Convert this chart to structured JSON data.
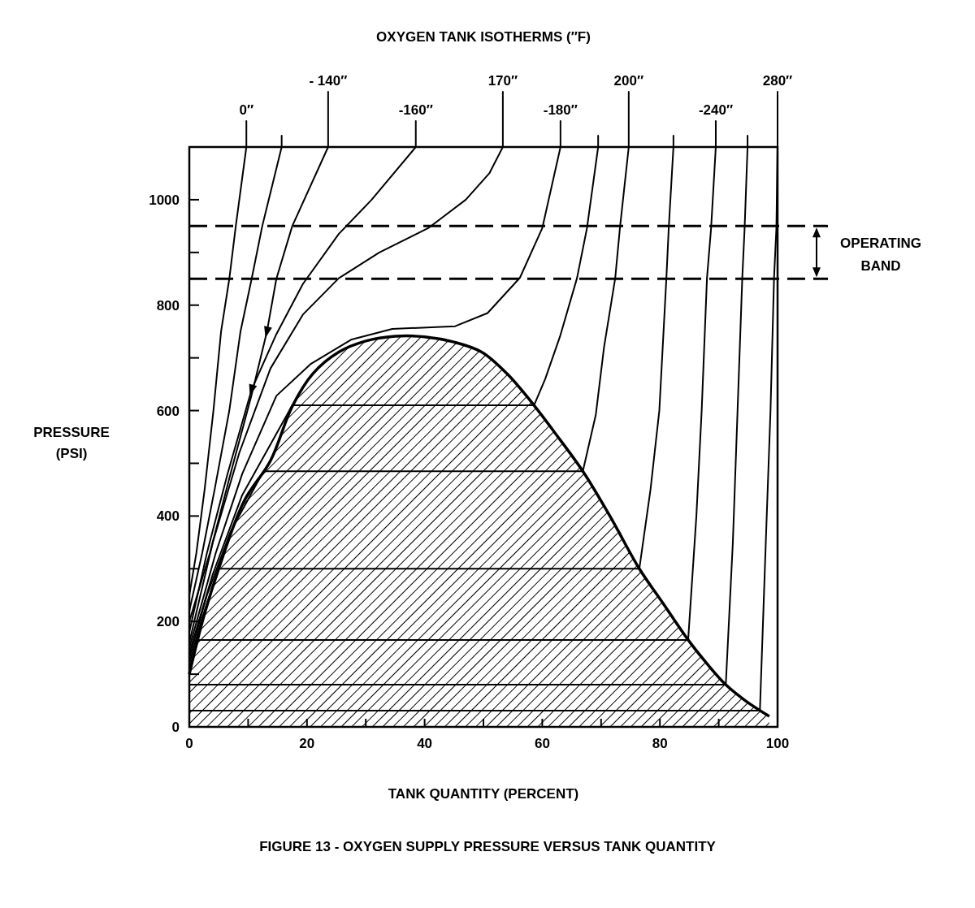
{
  "chart_data": {
    "type": "line",
    "title": "FIGURE 13 - OXYGEN SUPPLY PRESSURE VERSUS TANK QUANTITY",
    "xlabel": "TANK QUANTITY (PERCENT)",
    "ylabel": "PRESSURE (PSI)",
    "annotations": [
      "OXYGEN TANK ISOTHERMS (″F)",
      "OPERATING BAND"
    ],
    "xlim": [
      0,
      100
    ],
    "ylim": [
      0,
      1100
    ],
    "xticks": [
      0,
      {
        "value": 10,
        "label": null
      },
      20,
      {
        "value": 30,
        "label": null
      },
      40,
      {
        "value": 50,
        "label": null
      },
      60,
      {
        "value": 70,
        "label": null
      },
      80,
      {
        "value": 90,
        "label": null
      },
      100
    ],
    "yticks": [
      0,
      {
        "value": 100,
        "label": null
      },
      200,
      {
        "value": 300,
        "label": null
      },
      400,
      {
        "value": 500,
        "label": null
      },
      600,
      {
        "value": 700,
        "label": null
      },
      800,
      {
        "value": 900,
        "label": null
      },
      1000
    ],
    "grid": false,
    "marker": "none",
    "line_style": "solid",
    "ref_lines": [
      {
        "axis": "y",
        "value": 950,
        "color": "#000000",
        "line_style": "dashed"
      },
      {
        "axis": "y",
        "value": 850,
        "color": "#000000",
        "line_style": "dashed"
      }
    ],
    "series": [
      {
        "type": "area",
        "color": "#000000",
        "x": [
          0,
          2.3,
          5,
          9.3,
          13.8,
          17.5,
          21,
          25.4,
          30,
          35,
          40,
          45,
          49.7,
          54,
          58.6,
          62,
          66.9,
          71.5,
          76.5,
          80.5,
          84.8,
          88,
          91.2,
          94.5,
          98.6
        ],
        "values": [
          100,
          203,
          300,
          428,
          505,
          608,
          670,
          711,
          732,
          741,
          740,
          730,
          711,
          670,
          610,
          560,
          485,
          400,
          300,
          235,
          165,
          120,
          80,
          50,
          20
        ]
      },
      {
        "name": "0″",
        "color": "#000000",
        "x": [
          9.7,
          7.9,
          6.8,
          5.4,
          4.1,
          2.6,
          1.2,
          0
        ],
        "values": [
          1100,
          950,
          850,
          750,
          600,
          450,
          330,
          250
        ]
      },
      {
        "color": "#000000",
        "x": [
          15.7,
          12.4,
          10.6,
          8.7,
          6.8,
          4.3,
          2.2,
          0
        ],
        "values": [
          1100,
          950,
          850,
          750,
          600,
          450,
          330,
          220
        ]
      },
      {
        "name": "- 140″",
        "color": "#000000",
        "x": [
          23.6,
          17.5,
          14.8,
          13.2,
          10.6,
          7,
          3.5,
          0
        ],
        "values": [
          1100,
          950,
          850,
          750,
          630,
          480,
          330,
          200
        ]
      },
      {
        "name": "-160″",
        "color": "#000000",
        "x": [
          38.5,
          31,
          25.4,
          19.3,
          14.8,
          10.6,
          6.5,
          3,
          0
        ],
        "values": [
          1100,
          1000,
          935,
          840,
          745,
          640,
          480,
          330,
          180
        ]
      },
      {
        "name": "170″",
        "color": "#000000",
        "x": [
          53.3,
          51,
          47,
          40.6,
          32.3,
          25.4,
          19.3,
          13.8,
          8.5,
          4,
          0
        ],
        "values": [
          1100,
          1050,
          1000,
          946,
          900,
          851,
          782,
          680,
          520,
          350,
          160
        ]
      },
      {
        "name": "-180″",
        "color": "#000000",
        "x": [
          63.1,
          60,
          56.2,
          50.7,
          45.2,
          34.5,
          27.6,
          20.7,
          14.8,
          9,
          4.5,
          0
        ],
        "values": [
          1100,
          946,
          852,
          785,
          760,
          755,
          735,
          689,
          628,
          480,
          330,
          150
        ]
      },
      {
        "color": "#000000",
        "x": [
          69.5,
          67.6,
          65.9,
          63,
          60.5,
          58.6,
          17.5,
          9,
          4,
          0
        ],
        "values": [
          1100,
          946,
          851,
          740,
          660,
          610,
          610,
          440,
          290,
          140
        ]
      },
      {
        "name": "200″",
        "color": "#000000",
        "x": [
          74.7,
          73.2,
          72.4,
          70.5,
          69.1,
          66.9,
          12.6,
          7,
          3,
          0
        ],
        "values": [
          1100,
          946,
          851,
          720,
          592,
          485,
          485,
          370,
          250,
          130
        ]
      },
      {
        "color": "#000000",
        "x": [
          82.3,
          81.5,
          81.1,
          79.9,
          78.4,
          76.5,
          5,
          2,
          0
        ],
        "values": [
          1100,
          946,
          851,
          600,
          450,
          300,
          300,
          200,
          120
        ]
      },
      {
        "name": "-240″",
        "color": "#000000",
        "x": [
          89.5,
          88.7,
          88,
          87.1,
          86.2,
          84.8,
          1.5,
          0
        ],
        "values": [
          1100,
          946,
          851,
          600,
          400,
          165,
          165,
          110
        ]
      },
      {
        "color": "#000000",
        "x": [
          94.9,
          94.4,
          94,
          93.2,
          92.4,
          91.2,
          0
        ],
        "values": [
          1100,
          946,
          851,
          600,
          350,
          80,
          80
        ]
      },
      {
        "name": "280″",
        "color": "#000000",
        "x": [
          100,
          99.8,
          99.4,
          98.8,
          98,
          97,
          0
        ],
        "values": [
          1100,
          946,
          851,
          600,
          350,
          31,
          31
        ]
      }
    ]
  }
}
